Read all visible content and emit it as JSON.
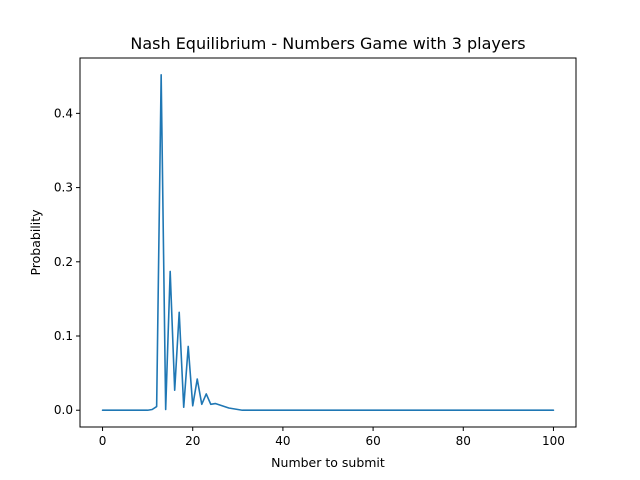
{
  "chart_data": {
    "type": "line",
    "title": "Nash Equilibrium - Numbers Game with 3 players",
    "xlabel": "Number to submit",
    "ylabel": "Probability",
    "xlim": [
      -5,
      105
    ],
    "ylim": [
      -0.0226,
      0.4746
    ],
    "xticks": [
      0,
      20,
      40,
      60,
      80,
      100
    ],
    "xtick_labels": [
      "0",
      "20",
      "40",
      "60",
      "80",
      "100"
    ],
    "yticks": [
      0.0,
      0.1,
      0.2,
      0.3,
      0.4
    ],
    "ytick_labels": [
      "0.0",
      "0.1",
      "0.2",
      "0.3",
      "0.4"
    ],
    "grid": false,
    "legend": "none",
    "color": "#1f77b4",
    "series": [
      {
        "x": [
          0,
          5,
          10,
          11,
          12,
          13,
          14,
          15,
          16,
          17,
          18,
          19,
          20,
          21,
          22,
          23,
          24,
          25,
          26,
          27,
          28,
          29,
          30,
          31,
          35,
          40,
          50,
          60,
          70,
          80,
          90,
          100
        ],
        "y": [
          0,
          0,
          0,
          0.001,
          0.005,
          0.452,
          0.001,
          0.187,
          0.027,
          0.132,
          0.004,
          0.086,
          0.006,
          0.042,
          0.008,
          0.022,
          0.008,
          0.009,
          0.007,
          0.005,
          0.003,
          0.002,
          0.001,
          0,
          0,
          0,
          0,
          0,
          0,
          0,
          0,
          0
        ]
      }
    ]
  }
}
